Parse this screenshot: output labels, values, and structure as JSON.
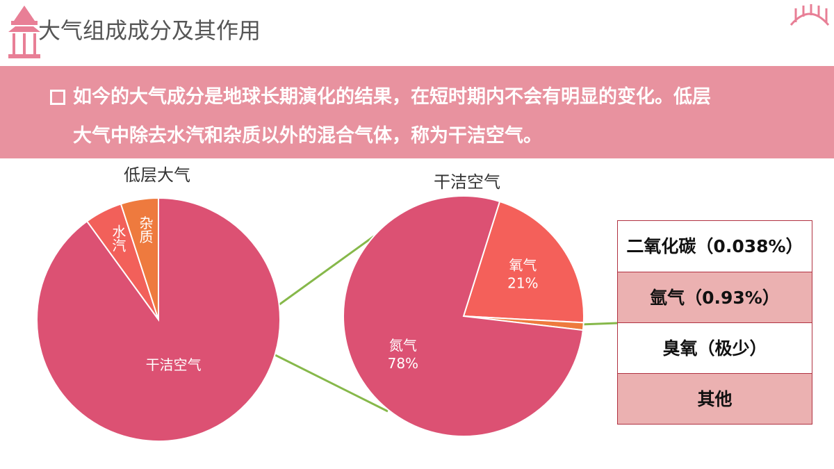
{
  "header": {
    "title": "大气组成成分及其作用"
  },
  "banner": {
    "lines": [
      "如今的大气成分是地球长期演化的结果，在短时期内不会有明显的变化。低层",
      "大气中除去水汽和杂质以外的混合气体，称为干洁空气。"
    ]
  },
  "chart_data": [
    {
      "type": "pie",
      "title": "低层大气",
      "categories": [
        "干洁空气",
        "水汽",
        "杂质"
      ],
      "values": [
        90,
        5,
        5
      ],
      "colors": [
        "#dc5173",
        "#f2605a",
        "#ee7a3e"
      ],
      "label_style": [
        "horizontal",
        "vertical",
        "vertical"
      ]
    },
    {
      "type": "pie",
      "title": "干洁空气",
      "categories": [
        "氧气",
        null,
        "氮气"
      ],
      "values": [
        21,
        1,
        78
      ],
      "value_labels": [
        "21%",
        null,
        "78%"
      ],
      "colors": [
        "#f4605a",
        "#ee7a3e",
        "#dc5173"
      ]
    }
  ],
  "table": {
    "rows": [
      "二氧化碳（0.038%）",
      "氩气（0.93%）",
      "臭氧（极少）",
      "其他"
    ]
  }
}
